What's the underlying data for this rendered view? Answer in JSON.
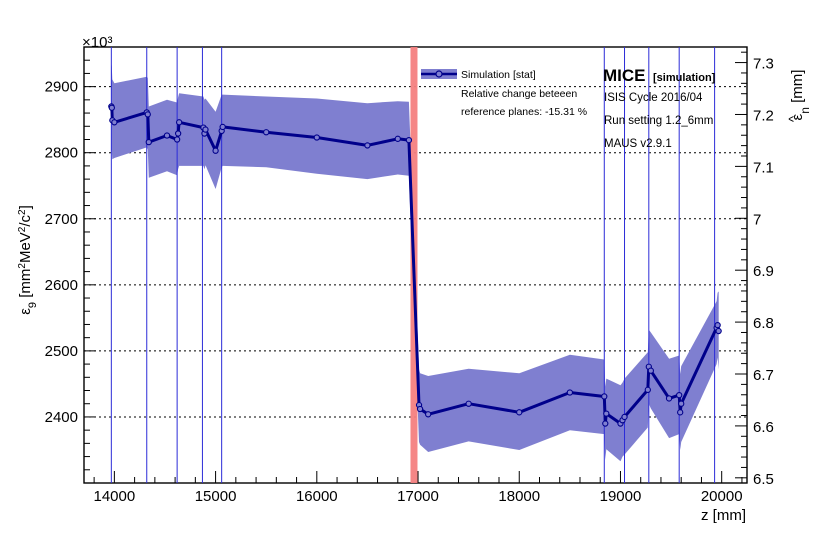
{
  "chart_data": {
    "type": "line",
    "xlabel": "z [mm]",
    "ylabel": "ε9 [mm²MeV²/c²]",
    "ylabel_parts": {
      "eps": "ε",
      "sub": "9",
      "pre": " [mm",
      "sup1": "2",
      "mid": "MeV",
      "sup2": "2",
      "mid2": "/c",
      "sup3": "2",
      "post": "]"
    },
    "y_multiplier": "×10³",
    "y2label": "ε̂n [mm]",
    "y2label_parts": {
      "eps": "ε",
      "sub": "n",
      "post": " [mm]"
    },
    "xlim": [
      13700,
      20250
    ],
    "ylim": [
      2300,
      2960
    ],
    "y2lim": [
      6.49,
      7.33
    ],
    "x_ticks": [
      14000,
      15000,
      16000,
      17000,
      18000,
      19000,
      20000
    ],
    "x_tick_labels": [
      "14000",
      "15000",
      "16000",
      "17000",
      "18000",
      "19000",
      "20000"
    ],
    "y_ticks": [
      2400,
      2500,
      2600,
      2700,
      2800,
      2900
    ],
    "y_tick_labels": [
      "2400",
      "2500",
      "2600",
      "2700",
      "2800",
      "2900"
    ],
    "y2_ticks": [
      6.5,
      6.6,
      6.7,
      6.8,
      6.9,
      7.0,
      7.1,
      7.2,
      7.3
    ],
    "y2_tick_labels": [
      "6.5",
      "6.6",
      "6.7",
      "6.8",
      "6.9",
      "7",
      "7.1",
      "7.2",
      "7.3"
    ],
    "grid": "horizontal dotted",
    "colors": {
      "line": "#00008b",
      "band": "#7f7fd0",
      "plane": "#2b2bd8",
      "absorber": "#f47f7f"
    },
    "series": [
      {
        "name": "Simulation [stat]",
        "x": [
          13970,
          13975,
          13980,
          14000,
          14320,
          14330,
          14340,
          14520,
          14620,
          14630,
          14640,
          14880,
          14890,
          14900,
          15000,
          15060,
          15070,
          15500,
          16000,
          16500,
          16800,
          16910,
          17010,
          17020,
          17100,
          17500,
          18000,
          18500,
          18840,
          18850,
          18860,
          19000,
          19020,
          19040,
          19270,
          19280,
          19300,
          19480,
          19580,
          19590,
          19600,
          19950,
          19960,
          19970
        ],
        "y": [
          2870,
          2868,
          2849,
          2846,
          2861,
          2858,
          2816,
          2826,
          2820,
          2829,
          2846,
          2838,
          2829,
          2835,
          2803,
          2833,
          2839,
          2831,
          2823,
          2811,
          2821,
          2819,
          2418,
          2412,
          2404,
          2420,
          2407,
          2437,
          2431,
          2390,
          2405,
          2390,
          2395,
          2400,
          2441,
          2476,
          2470,
          2428,
          2433,
          2407,
          2420,
          2535,
          2539,
          2530
        ],
        "upper": [
          2936,
          2930,
          2911,
          2905,
          2915,
          2913,
          2870,
          2880,
          2876,
          2884,
          2890,
          2885,
          2880,
          2882,
          2862,
          2888,
          2888,
          2885,
          2882,
          2875,
          2878,
          2877,
          2472,
          2466,
          2462,
          2473,
          2466,
          2494,
          2487,
          2446,
          2458,
          2448,
          2452,
          2458,
          2498,
          2532,
          2528,
          2488,
          2493,
          2465,
          2477,
          2575,
          2588,
          2590
        ],
        "lower": [
          2805,
          2803,
          2790,
          2792,
          2808,
          2805,
          2762,
          2772,
          2766,
          2775,
          2780,
          2780,
          2775,
          2781,
          2745,
          2778,
          2780,
          2778,
          2768,
          2760,
          2767,
          2765,
          2362,
          2358,
          2347,
          2363,
          2350,
          2380,
          2374,
          2335,
          2351,
          2333,
          2340,
          2343,
          2384,
          2420,
          2413,
          2368,
          2374,
          2350,
          2362,
          2480,
          2490,
          2472
        ]
      }
    ],
    "reference_planes_z": [
      13970,
      14320,
      14620,
      14870,
      15060,
      18840,
      19040,
      19280,
      19580,
      19930
    ],
    "absorber_z": 16960,
    "annotations": {
      "relative_change_line1": "Relative change beteeen",
      "relative_change_line2": "reference planes: -15.31 %"
    }
  },
  "info": {
    "mice_big": "MICE",
    "mice_small": "[simulation]",
    "cycle": "ISIS Cycle 2016/04",
    "run_setting": "Run setting 1.2_6mm",
    "maus": "MAUS v2.9.1"
  }
}
